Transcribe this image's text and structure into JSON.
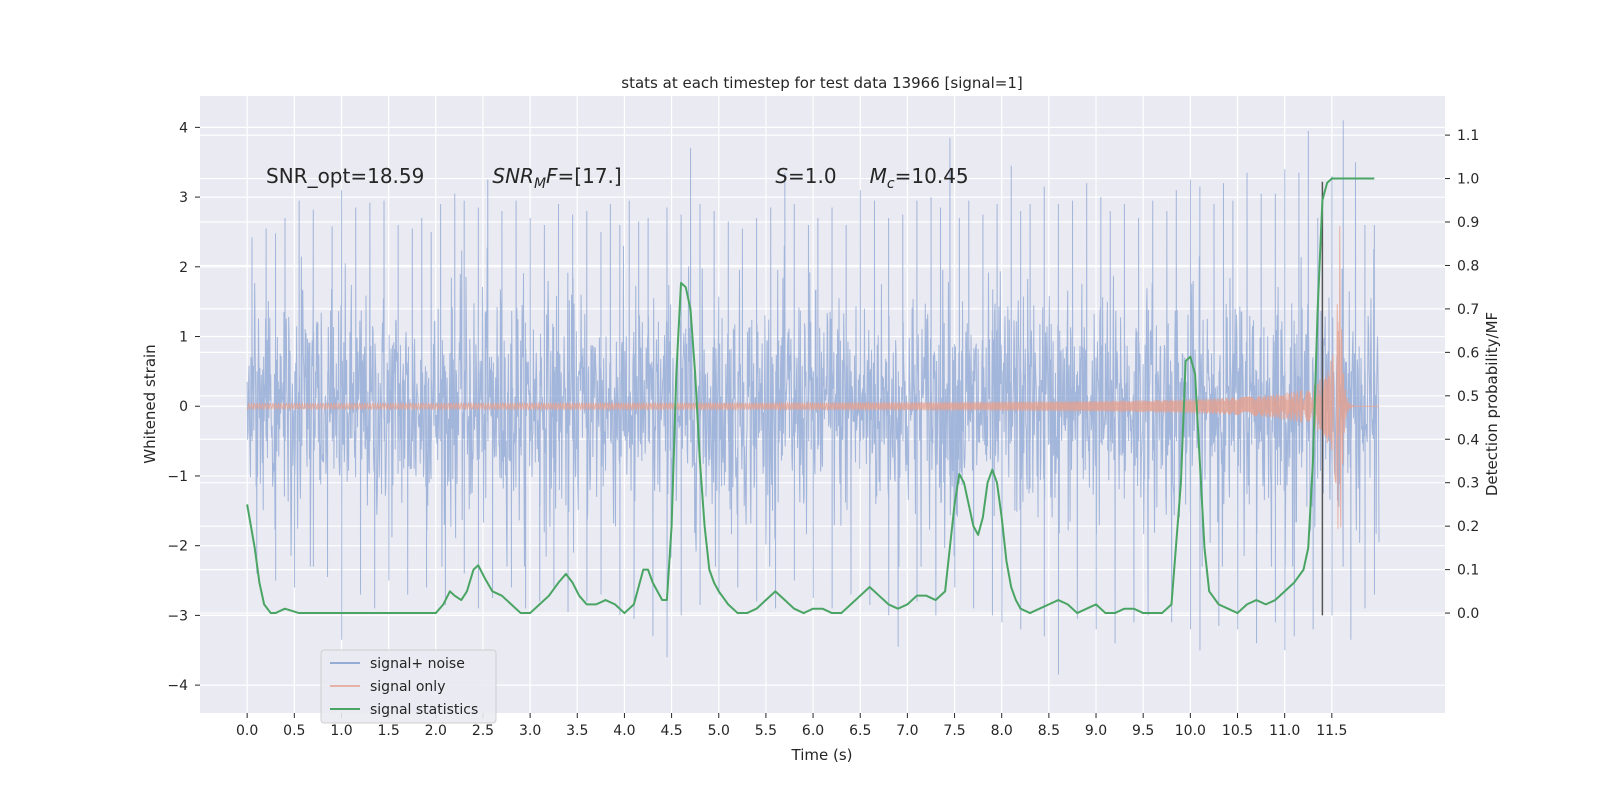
{
  "chart_data": {
    "type": "line",
    "title": "stats at each timestep for test data 13966 [signal=1]",
    "xlabel": "Time (s)",
    "ylabel": "Whitened strain",
    "y2label": "Detection probability/MF",
    "xlim": [
      -0.5,
      12.7
    ],
    "ylim": [
      -4.4,
      4.45
    ],
    "y2lim": [
      -0.23,
      1.19
    ],
    "x_ticks": [
      0.0,
      0.5,
      1.0,
      1.5,
      2.0,
      2.5,
      3.0,
      3.5,
      4.0,
      4.5,
      5.0,
      5.5,
      6.0,
      6.5,
      7.0,
      7.5,
      8.0,
      8.5,
      9.0,
      9.5,
      10.0,
      10.5,
      11.0,
      11.5
    ],
    "x_tick_labels": [
      "0.0",
      "0.5",
      "1.0",
      "1.5",
      "2.0",
      "2.5",
      "3.0",
      "3.5",
      "4.0",
      "4.5",
      "5.0",
      "5.5",
      "6.0",
      "6.5",
      "7.0",
      "7.5",
      "8.0",
      "8.5",
      "9.0",
      "9.5",
      "10.0",
      "10.5",
      "11.0",
      "11.5"
    ],
    "y_ticks": [
      4,
      3,
      2,
      1,
      0,
      -1,
      -2,
      -3,
      -4
    ],
    "y_tick_labels": [
      "4",
      "3",
      "2",
      "1",
      "0",
      "−1",
      "−2",
      "−3",
      "−4"
    ],
    "y2_ticks": [
      1.1,
      1.0,
      0.9,
      0.8,
      0.7,
      0.6,
      0.5,
      0.4,
      0.3,
      0.2,
      0.1,
      0.0
    ],
    "y2_tick_labels": [
      "1.1",
      "1.0",
      "0.9",
      "0.8",
      "0.7",
      "0.6",
      "0.5",
      "0.4",
      "0.3",
      "0.2",
      "0.1",
      "0.0"
    ],
    "grid": true,
    "legend_position": "lower-left",
    "annotations": [
      {
        "x": 0.2,
        "y": 3.3,
        "text_plain": "SNR_opt=18.59"
      },
      {
        "x": 2.6,
        "y": 3.3,
        "text_italic": "SNR",
        "text_sub": "M",
        "text_rest_italic": "F",
        "text_tail": "=[17.]"
      },
      {
        "x": 5.6,
        "y": 3.3,
        "text_italic": "S",
        "text_tail": "=1.0"
      },
      {
        "x": 6.6,
        "y": 3.3,
        "text_italic": "M",
        "text_sub": "c",
        "text_tail": "=10.45"
      }
    ],
    "vline": {
      "x": 11.4,
      "ymin": -3.0,
      "ymax": 3.22,
      "color": "#555555"
    },
    "series": [
      {
        "name": "signal+ noise",
        "color": "#7b98cc",
        "axis": "left",
        "t_start": 0.0,
        "t_end": 12.0,
        "envelope_std": 0.82,
        "spikes": [
          [
            0.05,
            2.42
          ],
          [
            0.2,
            2.55
          ],
          [
            0.3,
            2.48
          ],
          [
            0.4,
            2.7
          ],
          [
            0.55,
            2.95
          ],
          [
            0.7,
            2.82
          ],
          [
            0.9,
            2.58
          ],
          [
            1.0,
            3.1
          ],
          [
            1.15,
            2.85
          ],
          [
            1.3,
            2.92
          ],
          [
            1.45,
            2.95
          ],
          [
            1.6,
            2.6
          ],
          [
            1.75,
            2.55
          ],
          [
            1.85,
            2.7
          ],
          [
            1.95,
            2.5
          ],
          [
            2.05,
            2.9
          ],
          [
            2.2,
            3.05
          ],
          [
            2.3,
            2.95
          ],
          [
            2.45,
            2.85
          ],
          [
            2.55,
            3.25
          ],
          [
            2.7,
            2.8
          ],
          [
            2.85,
            2.95
          ],
          [
            3.0,
            2.7
          ],
          [
            3.15,
            2.6
          ],
          [
            3.3,
            2.9
          ],
          [
            3.45,
            2.75
          ],
          [
            3.6,
            2.8
          ],
          [
            3.75,
            2.5
          ],
          [
            3.85,
            2.9
          ],
          [
            3.95,
            2.6
          ],
          [
            4.05,
            2.95
          ],
          [
            4.15,
            2.65
          ],
          [
            4.25,
            2.7
          ],
          [
            4.45,
            2.85
          ],
          [
            4.6,
            2.75
          ],
          [
            4.7,
            3.7
          ],
          [
            4.8,
            2.9
          ],
          [
            4.95,
            2.8
          ],
          [
            5.1,
            2.65
          ],
          [
            5.25,
            2.55
          ],
          [
            5.4,
            2.7
          ],
          [
            5.55,
            2.85
          ],
          [
            5.7,
            3.35
          ],
          [
            5.8,
            2.9
          ],
          [
            5.95,
            2.6
          ],
          [
            6.05,
            2.7
          ],
          [
            6.2,
            2.85
          ],
          [
            6.35,
            2.6
          ],
          [
            6.5,
            3.1
          ],
          [
            6.65,
            2.95
          ],
          [
            6.8,
            2.7
          ],
          [
            6.95,
            2.75
          ],
          [
            7.1,
            2.95
          ],
          [
            7.25,
            3.0
          ],
          [
            7.35,
            2.85
          ],
          [
            7.45,
            3.85
          ],
          [
            7.55,
            2.7
          ],
          [
            7.65,
            2.95
          ],
          [
            7.8,
            2.75
          ],
          [
            7.95,
            2.9
          ],
          [
            8.1,
            3.45
          ],
          [
            8.2,
            2.8
          ],
          [
            8.3,
            2.9
          ],
          [
            8.45,
            3.15
          ],
          [
            8.6,
            2.9
          ],
          [
            8.75,
            2.95
          ],
          [
            8.9,
            3.2
          ],
          [
            9.05,
            3.0
          ],
          [
            9.15,
            2.8
          ],
          [
            9.3,
            2.9
          ],
          [
            9.45,
            2.7
          ],
          [
            9.6,
            2.95
          ],
          [
            9.75,
            2.8
          ],
          [
            9.85,
            3.1
          ],
          [
            10.0,
            3.25
          ],
          [
            10.1,
            3.15
          ],
          [
            10.25,
            2.9
          ],
          [
            10.35,
            3.2
          ],
          [
            10.45,
            2.95
          ],
          [
            10.6,
            3.35
          ],
          [
            10.75,
            3.05
          ],
          [
            10.9,
            3.05
          ],
          [
            11.0,
            3.4
          ],
          [
            11.15,
            3.35
          ],
          [
            11.25,
            3.95
          ],
          [
            11.35,
            2.7
          ],
          [
            11.5,
            3.3
          ],
          [
            11.62,
            4.1
          ],
          [
            11.75,
            3.5
          ],
          [
            11.85,
            2.6
          ],
          [
            11.95,
            2.6
          ]
        ],
        "dips": [
          [
            0.1,
            -2.4
          ],
          [
            0.3,
            -2.5
          ],
          [
            0.5,
            -2.6
          ],
          [
            0.7,
            -2.3
          ],
          [
            0.85,
            -2.45
          ],
          [
            1.0,
            -3.35
          ],
          [
            1.2,
            -2.7
          ],
          [
            1.35,
            -2.9
          ],
          [
            1.5,
            -2.5
          ],
          [
            1.7,
            -2.7
          ],
          [
            1.9,
            -2.6
          ],
          [
            2.1,
            -2.85
          ],
          [
            2.3,
            -2.4
          ],
          [
            2.45,
            -2.9
          ],
          [
            2.6,
            -2.75
          ],
          [
            2.8,
            -2.6
          ],
          [
            2.95,
            -2.9
          ],
          [
            3.1,
            -2.8
          ],
          [
            3.25,
            -2.6
          ],
          [
            3.4,
            -2.95
          ],
          [
            3.6,
            -2.8
          ],
          [
            3.75,
            -2.7
          ],
          [
            3.95,
            -3.0
          ],
          [
            4.1,
            -3.05
          ],
          [
            4.3,
            -3.3
          ],
          [
            4.45,
            -3.6
          ],
          [
            4.6,
            -3.0
          ],
          [
            4.8,
            -2.85
          ],
          [
            5.0,
            -2.7
          ],
          [
            5.2,
            -2.6
          ],
          [
            5.4,
            -2.8
          ],
          [
            5.6,
            -2.9
          ],
          [
            5.8,
            -2.5
          ],
          [
            6.0,
            -2.75
          ],
          [
            6.2,
            -2.9
          ],
          [
            6.4,
            -2.7
          ],
          [
            6.6,
            -2.85
          ],
          [
            6.8,
            -3.0
          ],
          [
            6.9,
            -3.45
          ],
          [
            7.1,
            -2.8
          ],
          [
            7.3,
            -3.0
          ],
          [
            7.5,
            -2.6
          ],
          [
            7.7,
            -2.9
          ],
          [
            7.9,
            -3.0
          ],
          [
            8.0,
            -3.1
          ],
          [
            8.2,
            -3.2
          ],
          [
            8.45,
            -3.3
          ],
          [
            8.6,
            -3.85
          ],
          [
            8.8,
            -3.05
          ],
          [
            9.0,
            -3.2
          ],
          [
            9.2,
            -3.4
          ],
          [
            9.4,
            -3.1
          ],
          [
            9.55,
            -3.0
          ],
          [
            9.8,
            -3.1
          ],
          [
            10.0,
            -3.2
          ],
          [
            10.1,
            -3.5
          ],
          [
            10.3,
            -3.15
          ],
          [
            10.5,
            -3.2
          ],
          [
            10.7,
            -3.4
          ],
          [
            10.9,
            -3.1
          ],
          [
            11.0,
            -3.5
          ],
          [
            11.1,
            -3.3
          ],
          [
            11.3,
            -3.2
          ],
          [
            11.5,
            -3.0
          ],
          [
            11.7,
            -3.35
          ],
          [
            11.85,
            -2.9
          ],
          [
            11.95,
            -2.7
          ]
        ]
      },
      {
        "name": "signal only",
        "color": "#e5a08f",
        "axis": "left",
        "chirp": {
          "t_start": 0.0,
          "t_merge": 11.58,
          "t_end": 12.0,
          "peak_amplitude": 3.2
        }
      },
      {
        "name": "signal statistics",
        "color": "#4aa564",
        "axis": "right",
        "x": [
          0.0,
          0.08,
          0.13,
          0.18,
          0.25,
          0.3,
          0.4,
          0.55,
          0.7,
          0.85,
          1.0,
          1.15,
          1.3,
          1.45,
          1.6,
          1.75,
          1.9,
          2.0,
          2.08,
          2.15,
          2.2,
          2.27,
          2.33,
          2.4,
          2.45,
          2.52,
          2.6,
          2.7,
          2.8,
          2.9,
          3.0,
          3.1,
          3.2,
          3.3,
          3.38,
          3.45,
          3.52,
          3.6,
          3.7,
          3.8,
          3.9,
          4.0,
          4.1,
          4.2,
          4.25,
          4.3,
          4.4,
          4.45,
          4.5,
          4.55,
          4.6,
          4.65,
          4.7,
          4.75,
          4.8,
          4.85,
          4.9,
          4.95,
          5.0,
          5.1,
          5.2,
          5.3,
          5.4,
          5.5,
          5.6,
          5.7,
          5.8,
          5.9,
          6.0,
          6.1,
          6.2,
          6.3,
          6.4,
          6.5,
          6.6,
          6.7,
          6.8,
          6.9,
          7.0,
          7.1,
          7.2,
          7.3,
          7.4,
          7.5,
          7.55,
          7.6,
          7.65,
          7.7,
          7.75,
          7.8,
          7.85,
          7.9,
          7.95,
          8.0,
          8.05,
          8.1,
          8.15,
          8.2,
          8.3,
          8.4,
          8.5,
          8.6,
          8.7,
          8.8,
          8.9,
          9.0,
          9.1,
          9.2,
          9.3,
          9.4,
          9.5,
          9.6,
          9.7,
          9.8,
          9.9,
          9.95,
          10.0,
          10.05,
          10.1,
          10.15,
          10.2,
          10.3,
          10.4,
          10.5,
          10.6,
          10.7,
          10.8,
          10.9,
          11.0,
          11.1,
          11.2,
          11.25,
          11.3,
          11.35,
          11.4,
          11.45,
          11.5,
          11.55,
          11.6,
          11.7,
          11.8,
          11.9,
          11.95
        ],
        "values": [
          0.25,
          0.15,
          0.07,
          0.02,
          0.0,
          0.0,
          0.01,
          0.0,
          0.0,
          0.0,
          0.0,
          0.0,
          0.0,
          0.0,
          0.0,
          0.0,
          0.0,
          0.0,
          0.02,
          0.05,
          0.04,
          0.03,
          0.05,
          0.1,
          0.11,
          0.08,
          0.05,
          0.04,
          0.02,
          0.0,
          0.0,
          0.02,
          0.04,
          0.07,
          0.09,
          0.07,
          0.04,
          0.02,
          0.02,
          0.03,
          0.02,
          0.0,
          0.02,
          0.1,
          0.1,
          0.07,
          0.03,
          0.03,
          0.2,
          0.55,
          0.76,
          0.75,
          0.7,
          0.55,
          0.35,
          0.2,
          0.1,
          0.07,
          0.05,
          0.02,
          0.0,
          0.0,
          0.01,
          0.03,
          0.05,
          0.03,
          0.01,
          0.0,
          0.01,
          0.01,
          0.0,
          0.0,
          0.02,
          0.04,
          0.06,
          0.04,
          0.02,
          0.01,
          0.02,
          0.04,
          0.04,
          0.03,
          0.05,
          0.25,
          0.32,
          0.3,
          0.25,
          0.2,
          0.18,
          0.22,
          0.3,
          0.33,
          0.3,
          0.22,
          0.12,
          0.06,
          0.03,
          0.01,
          0.0,
          0.01,
          0.02,
          0.03,
          0.02,
          0.0,
          0.01,
          0.02,
          0.0,
          0.0,
          0.01,
          0.01,
          0.0,
          0.0,
          0.0,
          0.02,
          0.3,
          0.58,
          0.59,
          0.55,
          0.35,
          0.15,
          0.05,
          0.02,
          0.01,
          0.0,
          0.02,
          0.03,
          0.02,
          0.03,
          0.05,
          0.07,
          0.1,
          0.15,
          0.35,
          0.7,
          0.95,
          0.99,
          1.0,
          1.0,
          1.0,
          1.0,
          1.0,
          1.0,
          1.0
        ]
      }
    ]
  }
}
